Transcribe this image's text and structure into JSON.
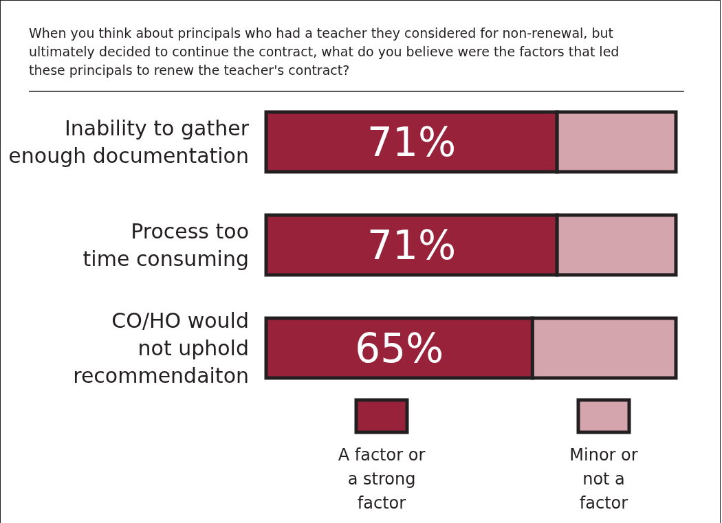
{
  "chart_data": {
    "type": "bar",
    "orientation": "horizontal",
    "stacked": true,
    "title": "When you think about principals who had a teacher they considered for non-renewal, but\nultimately decided to continue the contract, what do you believe were the factors that led\nthese principals to renew the teacher's contract?",
    "categories": [
      "Inability to gather\nenough documentation",
      "Process too\ntime consuming",
      "CO/HO would\nnot uphold\nrecommendaiton"
    ],
    "series": [
      {
        "name": "A factor or\na strong\nfactor",
        "color": "#97223a",
        "values": [
          71,
          71,
          65
        ],
        "value_labels": [
          "71%",
          "71%",
          "65%"
        ]
      },
      {
        "name": "Minor or\nnot a\nfactor",
        "color": "#d5a5ae",
        "values": [
          29,
          29,
          35
        ]
      }
    ],
    "legend": "bottom"
  }
}
